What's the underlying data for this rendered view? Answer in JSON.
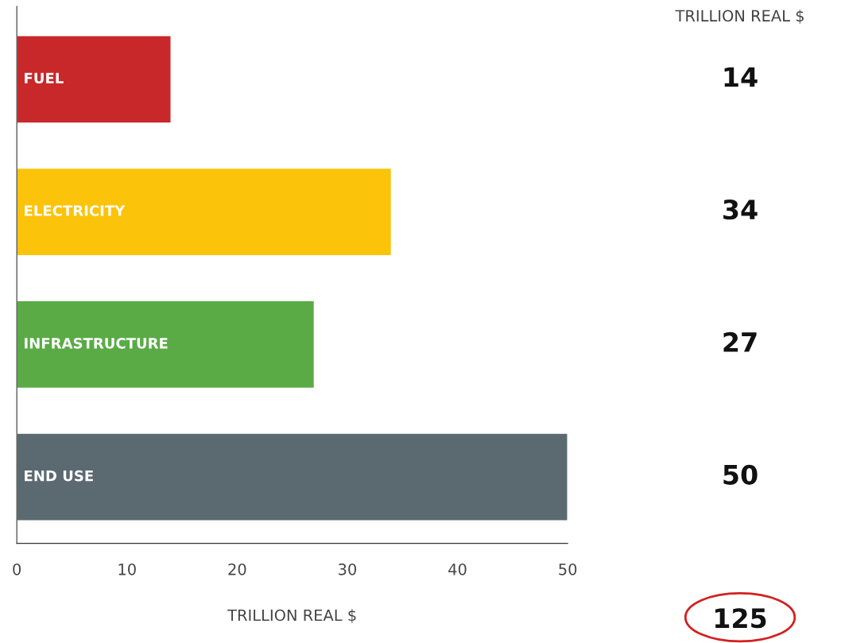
{
  "chart_data": {
    "type": "bar",
    "orientation": "horizontal",
    "categories": [
      "FUEL",
      "ELECTRICITY",
      "INFRASTRUCTURE",
      "END USE"
    ],
    "values": [
      14,
      34,
      27,
      50
    ],
    "colors": [
      "#c8282a",
      "#fcc30b",
      "#5aab46",
      "#5b6a70"
    ],
    "xlabel": "TRILLION REAL $",
    "xlim": [
      0,
      50
    ],
    "xticks": [
      0,
      10,
      20,
      30,
      40,
      50
    ],
    "data_labels": true,
    "grid": false,
    "legend": false,
    "tick_labels": "x",
    "annotations": [
      "TRILLION REAL $",
      "125"
    ]
  }
}
